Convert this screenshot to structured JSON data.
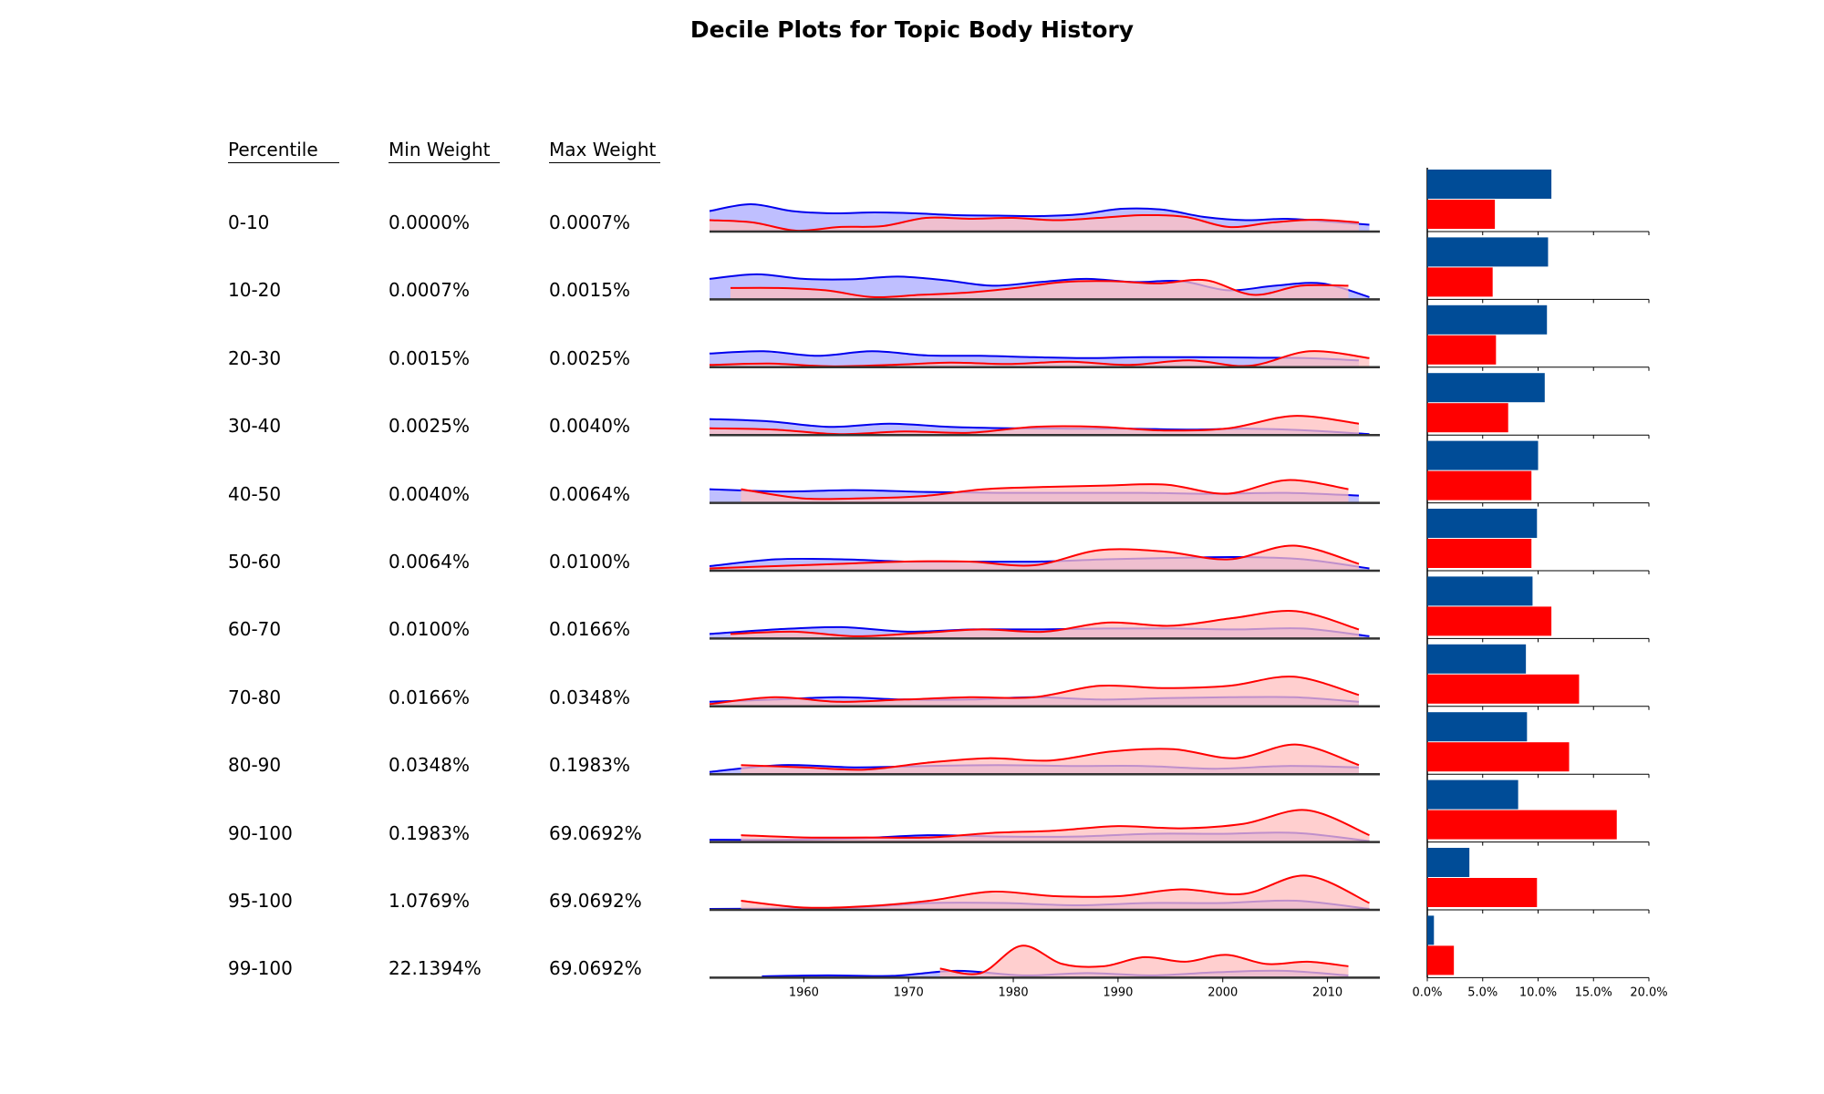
{
  "title": "Decile Plots for Topic Body History",
  "table": {
    "headers": [
      "Percentile",
      "Min Weight",
      "Max Weight"
    ],
    "rows": [
      {
        "percentile": "0-10",
        "min": "0.0000%",
        "max": "0.0007%"
      },
      {
        "percentile": "10-20",
        "min": "0.0007%",
        "max": "0.0015%"
      },
      {
        "percentile": "20-30",
        "min": "0.0015%",
        "max": "0.0025%"
      },
      {
        "percentile": "30-40",
        "min": "0.0025%",
        "max": "0.0040%"
      },
      {
        "percentile": "40-50",
        "min": "0.0040%",
        "max": "0.0064%"
      },
      {
        "percentile": "50-60",
        "min": "0.0064%",
        "max": "0.0100%"
      },
      {
        "percentile": "60-70",
        "min": "0.0100%",
        "max": "0.0166%"
      },
      {
        "percentile": "70-80",
        "min": "0.0166%",
        "max": "0.0348%"
      },
      {
        "percentile": "80-90",
        "min": "0.0348%",
        "max": "0.1983%"
      },
      {
        "percentile": "90-100",
        "min": "0.1983%",
        "max": "69.0692%"
      },
      {
        "percentile": "95-100",
        "min": "1.0769%",
        "max": "69.0692%"
      },
      {
        "percentile": "99-100",
        "min": "22.1394%",
        "max": "69.0692%"
      }
    ]
  },
  "chart_data": [
    {
      "type": "area",
      "xlim": [
        1951,
        2015
      ],
      "x_ticks": [
        1960,
        1970,
        1980,
        1990,
        2000,
        2010
      ],
      "series_colors": {
        "blue": "#0000ee",
        "red": "#ff0000"
      },
      "fill_colors": {
        "blue": "#bcbcff",
        "red": "#ffbfbf",
        "overlap": "#cc88c8"
      },
      "rows": [
        {
          "blue": {
            "range": [
              1951,
              2014
            ],
            "y": [
              0.45,
              0.6,
              0.45,
              0.4,
              0.42,
              0.4,
              0.36,
              0.35,
              0.34,
              0.38,
              0.5,
              0.48,
              0.32,
              0.25,
              0.28,
              0.22,
              0.15
            ]
          },
          "red": {
            "range": [
              1951,
              2013
            ],
            "y": [
              0.25,
              0.2,
              0.02,
              0.1,
              0.12,
              0.3,
              0.28,
              0.3,
              0.25,
              0.3,
              0.36,
              0.32,
              0.1,
              0.2,
              0.26,
              0.2
            ]
          }
        },
        {
          "blue": {
            "range": [
              1951,
              2014
            ],
            "y": [
              0.45,
              0.55,
              0.45,
              0.44,
              0.5,
              0.42,
              0.3,
              0.38,
              0.45,
              0.38,
              0.4,
              0.2,
              0.3,
              0.35,
              0.05
            ]
          },
          "red": {
            "range": [
              1953,
              2012
            ],
            "y": [
              0.25,
              0.25,
              0.2,
              0.05,
              0.1,
              0.15,
              0.25,
              0.38,
              0.4,
              0.35,
              0.42,
              0.1,
              0.3,
              0.3
            ]
          }
        },
        {
          "blue": {
            "range": [
              1951,
              2013
            ],
            "y": [
              0.3,
              0.35,
              0.25,
              0.35,
              0.26,
              0.25,
              0.22,
              0.2,
              0.22,
              0.22,
              0.21,
              0.2,
              0.15
            ]
          },
          "red": {
            "range": [
              1951,
              2014
            ],
            "y": [
              0.05,
              0.08,
              0.02,
              0.05,
              0.1,
              0.07,
              0.12,
              0.05,
              0.15,
              0.03,
              0.35,
              0.2
            ]
          }
        },
        {
          "blue": {
            "range": [
              1951,
              2014
            ],
            "y": [
              0.35,
              0.3,
              0.18,
              0.25,
              0.18,
              0.15,
              0.14,
              0.14,
              0.12,
              0.14,
              0.1,
              0.02
            ]
          },
          "red": {
            "range": [
              1951,
              2013
            ],
            "y": [
              0.15,
              0.12,
              0.02,
              0.08,
              0.05,
              0.18,
              0.18,
              0.1,
              0.15,
              0.42,
              0.25
            ]
          }
        },
        {
          "blue": {
            "range": [
              1951,
              2013
            ],
            "y": [
              0.3,
              0.25,
              0.28,
              0.24,
              0.22,
              0.22,
              0.22,
              0.2,
              0.22,
              0.16
            ]
          },
          "red": {
            "range": [
              1954,
              2012
            ],
            "y": [
              0.3,
              0.1,
              0.1,
              0.15,
              0.3,
              0.35,
              0.38,
              0.4,
              0.2,
              0.5,
              0.3
            ]
          }
        },
        {
          "blue": {
            "range": [
              1951,
              2014
            ],
            "y": [
              0.1,
              0.25,
              0.25,
              0.2,
              0.2,
              0.2,
              0.25,
              0.28,
              0.3,
              0.25,
              0.05
            ]
          },
          "red": {
            "range": [
              1951,
              2013
            ],
            "y": [
              0.05,
              0.1,
              0.15,
              0.2,
              0.2,
              0.12,
              0.45,
              0.42,
              0.25,
              0.55,
              0.15
            ]
          }
        },
        {
          "blue": {
            "range": [
              1951,
              2014
            ],
            "y": [
              0.1,
              0.2,
              0.25,
              0.15,
              0.2,
              0.2,
              0.22,
              0.22,
              0.2,
              0.22,
              0.05
            ]
          },
          "red": {
            "range": [
              1953,
              2013
            ],
            "y": [
              0.1,
              0.15,
              0.05,
              0.12,
              0.2,
              0.15,
              0.35,
              0.28,
              0.45,
              0.6,
              0.2
            ]
          }
        },
        {
          "blue": {
            "range": [
              1951,
              2013
            ],
            "y": [
              0.1,
              0.15,
              0.2,
              0.15,
              0.15,
              0.2,
              0.15,
              0.18,
              0.2,
              0.2,
              0.1
            ]
          },
          "red": {
            "range": [
              1951,
              2013
            ],
            "y": [
              0.05,
              0.2,
              0.1,
              0.15,
              0.2,
              0.2,
              0.45,
              0.4,
              0.45,
              0.65,
              0.25
            ]
          }
        },
        {
          "blue": {
            "range": [
              1951,
              2013
            ],
            "y": [
              0.05,
              0.2,
              0.15,
              0.18,
              0.2,
              0.18,
              0.18,
              0.12,
              0.18,
              0.15
            ]
          },
          "red": {
            "range": [
              1954,
              2013
            ],
            "y": [
              0.2,
              0.15,
              0.1,
              0.25,
              0.35,
              0.3,
              0.5,
              0.55,
              0.35,
              0.65,
              0.2
            ]
          }
        },
        {
          "blue": {
            "range": [
              1951,
              2014
            ],
            "y": [
              0.05,
              0.05,
              0.08,
              0.15,
              0.12,
              0.12,
              0.18,
              0.18,
              0.2,
              0.02
            ]
          },
          "red": {
            "range": [
              1954,
              2014
            ],
            "y": [
              0.15,
              0.1,
              0.1,
              0.1,
              0.2,
              0.25,
              0.35,
              0.3,
              0.4,
              0.7,
              0.15
            ]
          }
        },
        {
          "blue": {
            "range": [
              1951,
              2014
            ],
            "y": [
              0.02,
              0.03,
              0.05,
              0.15,
              0.15,
              0.1,
              0.15,
              0.15,
              0.2,
              0.02
            ]
          },
          "red": {
            "range": [
              1954,
              2014
            ],
            "y": [
              0.2,
              0.05,
              0.08,
              0.2,
              0.4,
              0.3,
              0.3,
              0.45,
              0.35,
              0.75,
              0.15
            ]
          }
        },
        {
          "blue": {
            "range": [
              1956,
              2012
            ],
            "y": [
              0.03,
              0.05,
              0.04,
              0.15,
              0.05,
              0.1,
              0.05,
              0.12,
              0.15,
              0.05
            ]
          },
          "red": {
            "range": [
              1973,
              2012
            ],
            "y": [
              0.2,
              0.1,
              0.7,
              0.3,
              0.25,
              0.45,
              0.35,
              0.5,
              0.3,
              0.35,
              0.25
            ]
          }
        }
      ]
    },
    {
      "type": "bar",
      "orientation": "horizontal",
      "xlim": [
        0,
        20
      ],
      "x_ticks": [
        "0.0%",
        "5.0%",
        "10.0%",
        "15.0%",
        "20.0%"
      ],
      "colors": {
        "blue": "#004c97",
        "red": "#ff0000"
      },
      "series": [
        {
          "color": "blue",
          "values": [
            11.2,
            10.9,
            10.8,
            10.6,
            10.0,
            9.9,
            9.5,
            8.9,
            9.0,
            8.2,
            3.8,
            0.6
          ]
        },
        {
          "color": "red",
          "values": [
            6.1,
            5.9,
            6.2,
            7.3,
            9.4,
            9.4,
            11.2,
            13.7,
            12.8,
            17.1,
            9.9,
            2.4
          ]
        }
      ]
    }
  ]
}
